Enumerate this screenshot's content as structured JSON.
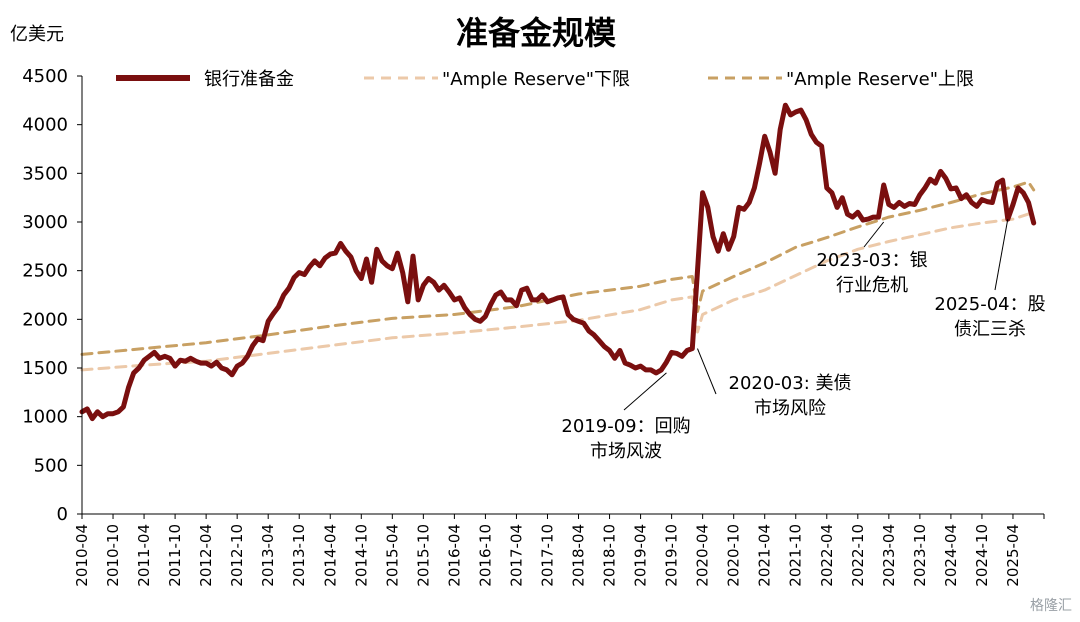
{
  "chart_data": {
    "type": "line",
    "title": "准备金规模",
    "ylabel": "亿美元",
    "ylim": [
      0,
      4500
    ],
    "yticks": [
      "0",
      "500",
      "1000",
      "1500",
      "2000",
      "2500",
      "3000",
      "3500",
      "4000",
      "4500"
    ],
    "xlim": [
      "2010-04",
      "2025-10"
    ],
    "xticks": [
      "2010-04",
      "2010-10",
      "2011-04",
      "2011-10",
      "2012-04",
      "2012-10",
      "2013-04",
      "2013-10",
      "2014-04",
      "2014-10",
      "2015-04",
      "2015-10",
      "2016-04",
      "2016-10",
      "2017-04",
      "2017-10",
      "2018-04",
      "2018-10",
      "2019-04",
      "2019-10",
      "2020-04",
      "2020-10",
      "2021-04",
      "2021-10",
      "2022-04",
      "2022-10",
      "2023-04",
      "2023-10",
      "2024-04",
      "2024-10",
      "2025-04"
    ],
    "legend_position": "top",
    "grid": false,
    "series": [
      {
        "name": "银行准备金",
        "color": "#7a0f0f",
        "style": "solid",
        "points": [
          [
            "2010-04",
            1050
          ],
          [
            "2010-05",
            1080
          ],
          [
            "2010-06",
            980
          ],
          [
            "2010-07",
            1050
          ],
          [
            "2010-08",
            1000
          ],
          [
            "2010-09",
            1030
          ],
          [
            "2010-10",
            1030
          ],
          [
            "2010-11",
            1050
          ],
          [
            "2010-12",
            1100
          ],
          [
            "2011-01",
            1300
          ],
          [
            "2011-02",
            1450
          ],
          [
            "2011-03",
            1500
          ],
          [
            "2011-04",
            1580
          ],
          [
            "2011-05",
            1620
          ],
          [
            "2011-06",
            1660
          ],
          [
            "2011-07",
            1600
          ],
          [
            "2011-08",
            1620
          ],
          [
            "2011-09",
            1600
          ],
          [
            "2011-10",
            1520
          ],
          [
            "2011-11",
            1580
          ],
          [
            "2011-12",
            1570
          ],
          [
            "2012-01",
            1600
          ],
          [
            "2012-02",
            1570
          ],
          [
            "2012-03",
            1550
          ],
          [
            "2012-04",
            1550
          ],
          [
            "2012-05",
            1520
          ],
          [
            "2012-06",
            1560
          ],
          [
            "2012-07",
            1500
          ],
          [
            "2012-08",
            1480
          ],
          [
            "2012-09",
            1430
          ],
          [
            "2012-10",
            1520
          ],
          [
            "2012-11",
            1550
          ],
          [
            "2012-12",
            1620
          ],
          [
            "2013-01",
            1730
          ],
          [
            "2013-02",
            1800
          ],
          [
            "2013-03",
            1780
          ],
          [
            "2013-04",
            1980
          ],
          [
            "2013-05",
            2060
          ],
          [
            "2013-06",
            2130
          ],
          [
            "2013-07",
            2250
          ],
          [
            "2013-08",
            2320
          ],
          [
            "2013-09",
            2430
          ],
          [
            "2013-10",
            2480
          ],
          [
            "2013-11",
            2460
          ],
          [
            "2013-12",
            2540
          ],
          [
            "2014-01",
            2600
          ],
          [
            "2014-02",
            2550
          ],
          [
            "2014-03",
            2630
          ],
          [
            "2014-04",
            2670
          ],
          [
            "2014-05",
            2680
          ],
          [
            "2014-06",
            2780
          ],
          [
            "2014-07",
            2700
          ],
          [
            "2014-08",
            2640
          ],
          [
            "2014-09",
            2500
          ],
          [
            "2014-10",
            2420
          ],
          [
            "2014-11",
            2620
          ],
          [
            "2014-12",
            2380
          ],
          [
            "2015-01",
            2720
          ],
          [
            "2015-02",
            2600
          ],
          [
            "2015-03",
            2550
          ],
          [
            "2015-04",
            2520
          ],
          [
            "2015-05",
            2680
          ],
          [
            "2015-06",
            2480
          ],
          [
            "2015-07",
            2180
          ],
          [
            "2015-08",
            2650
          ],
          [
            "2015-09",
            2200
          ],
          [
            "2015-10",
            2350
          ],
          [
            "2015-11",
            2420
          ],
          [
            "2015-12",
            2380
          ],
          [
            "2016-01",
            2300
          ],
          [
            "2016-02",
            2350
          ],
          [
            "2016-03",
            2280
          ],
          [
            "2016-04",
            2200
          ],
          [
            "2016-05",
            2220
          ],
          [
            "2016-06",
            2120
          ],
          [
            "2016-07",
            2050
          ],
          [
            "2016-08",
            2000
          ],
          [
            "2016-09",
            1980
          ],
          [
            "2016-10",
            2030
          ],
          [
            "2016-11",
            2150
          ],
          [
            "2016-12",
            2250
          ],
          [
            "2017-01",
            2280
          ],
          [
            "2017-02",
            2200
          ],
          [
            "2017-03",
            2200
          ],
          [
            "2017-04",
            2140
          ],
          [
            "2017-05",
            2300
          ],
          [
            "2017-06",
            2320
          ],
          [
            "2017-07",
            2200
          ],
          [
            "2017-08",
            2200
          ],
          [
            "2017-09",
            2250
          ],
          [
            "2017-10",
            2180
          ],
          [
            "2017-11",
            2200
          ],
          [
            "2017-12",
            2220
          ],
          [
            "2018-01",
            2230
          ],
          [
            "2018-02",
            2050
          ],
          [
            "2018-03",
            2000
          ],
          [
            "2018-04",
            1980
          ],
          [
            "2018-05",
            1960
          ],
          [
            "2018-06",
            1880
          ],
          [
            "2018-07",
            1840
          ],
          [
            "2018-08",
            1780
          ],
          [
            "2018-09",
            1720
          ],
          [
            "2018-10",
            1680
          ],
          [
            "2018-11",
            1600
          ],
          [
            "2018-12",
            1680
          ],
          [
            "2019-01",
            1550
          ],
          [
            "2019-02",
            1530
          ],
          [
            "2019-03",
            1500
          ],
          [
            "2019-04",
            1520
          ],
          [
            "2019-05",
            1480
          ],
          [
            "2019-06",
            1480
          ],
          [
            "2019-07",
            1450
          ],
          [
            "2019-08",
            1480
          ],
          [
            "2019-09",
            1560
          ],
          [
            "2019-10",
            1660
          ],
          [
            "2019-11",
            1650
          ],
          [
            "2019-12",
            1620
          ],
          [
            "2020-01",
            1680
          ],
          [
            "2020-02",
            1700
          ],
          [
            "2020-03",
            2500
          ],
          [
            "2020-04",
            3300
          ],
          [
            "2020-05",
            3150
          ],
          [
            "2020-06",
            2850
          ],
          [
            "2020-07",
            2700
          ],
          [
            "2020-08",
            2880
          ],
          [
            "2020-09",
            2720
          ],
          [
            "2020-10",
            2850
          ],
          [
            "2020-11",
            3150
          ],
          [
            "2020-12",
            3130
          ],
          [
            "2021-01",
            3200
          ],
          [
            "2021-02",
            3350
          ],
          [
            "2021-03",
            3600
          ],
          [
            "2021-04",
            3880
          ],
          [
            "2021-05",
            3720
          ],
          [
            "2021-06",
            3500
          ],
          [
            "2021-07",
            3950
          ],
          [
            "2021-08",
            4200
          ],
          [
            "2021-09",
            4100
          ],
          [
            "2021-10",
            4130
          ],
          [
            "2021-11",
            4150
          ],
          [
            "2021-12",
            4050
          ],
          [
            "2022-01",
            3900
          ],
          [
            "2022-02",
            3820
          ],
          [
            "2022-03",
            3780
          ],
          [
            "2022-04",
            3350
          ],
          [
            "2022-05",
            3300
          ],
          [
            "2022-06",
            3150
          ],
          [
            "2022-07",
            3250
          ],
          [
            "2022-08",
            3080
          ],
          [
            "2022-09",
            3050
          ],
          [
            "2022-10",
            3100
          ],
          [
            "2022-11",
            3020
          ],
          [
            "2022-12",
            3030
          ],
          [
            "2023-01",
            3050
          ],
          [
            "2023-02",
            3050
          ],
          [
            "2023-03",
            3380
          ],
          [
            "2023-04",
            3180
          ],
          [
            "2023-05",
            3150
          ],
          [
            "2023-06",
            3200
          ],
          [
            "2023-07",
            3160
          ],
          [
            "2023-08",
            3190
          ],
          [
            "2023-09",
            3180
          ],
          [
            "2023-10",
            3280
          ],
          [
            "2023-11",
            3350
          ],
          [
            "2023-12",
            3440
          ],
          [
            "2024-01",
            3400
          ],
          [
            "2024-02",
            3520
          ],
          [
            "2024-03",
            3450
          ],
          [
            "2024-04",
            3340
          ],
          [
            "2024-05",
            3350
          ],
          [
            "2024-06",
            3240
          ],
          [
            "2024-07",
            3280
          ],
          [
            "2024-08",
            3200
          ],
          [
            "2024-09",
            3160
          ],
          [
            "2024-10",
            3230
          ],
          [
            "2024-11",
            3210
          ],
          [
            "2024-12",
            3200
          ],
          [
            "2025-01",
            3400
          ],
          [
            "2025-02",
            3430
          ],
          [
            "2025-03",
            3030
          ],
          [
            "2025-04",
            3180
          ],
          [
            "2025-05",
            3350
          ],
          [
            "2025-06",
            3300
          ],
          [
            "2025-07",
            3200
          ],
          [
            "2025-08",
            2990
          ]
        ]
      },
      {
        "name": "\"Ample Reserve\"下限",
        "color": "#ecc9a9",
        "style": "dashed",
        "points": [
          [
            "2010-04",
            1480
          ],
          [
            "2011-04",
            1530
          ],
          [
            "2012-04",
            1570
          ],
          [
            "2013-04",
            1650
          ],
          [
            "2014-04",
            1730
          ],
          [
            "2015-04",
            1810
          ],
          [
            "2016-04",
            1860
          ],
          [
            "2017-04",
            1920
          ],
          [
            "2018-04",
            1990
          ],
          [
            "2019-04",
            2100
          ],
          [
            "2019-10",
            2200
          ],
          [
            "2020-02",
            2230
          ],
          [
            "2020-03",
            1870
          ],
          [
            "2020-04",
            2050
          ],
          [
            "2020-10",
            2200
          ],
          [
            "2021-04",
            2300
          ],
          [
            "2021-10",
            2450
          ],
          [
            "2022-04",
            2600
          ],
          [
            "2022-10",
            2720
          ],
          [
            "2023-04",
            2800
          ],
          [
            "2023-10",
            2870
          ],
          [
            "2024-04",
            2940
          ],
          [
            "2024-10",
            2990
          ],
          [
            "2025-04",
            3030
          ],
          [
            "2025-08",
            3100
          ]
        ]
      },
      {
        "name": "\"Ample Reserve\"上限",
        "color": "#c8a063",
        "style": "dashed",
        "points": [
          [
            "2010-04",
            1640
          ],
          [
            "2011-04",
            1700
          ],
          [
            "2012-04",
            1760
          ],
          [
            "2013-04",
            1840
          ],
          [
            "2014-04",
            1930
          ],
          [
            "2015-04",
            2010
          ],
          [
            "2016-04",
            2050
          ],
          [
            "2017-04",
            2130
          ],
          [
            "2018-04",
            2260
          ],
          [
            "2019-04",
            2340
          ],
          [
            "2019-10",
            2410
          ],
          [
            "2020-02",
            2440
          ],
          [
            "2020-03",
            2080
          ],
          [
            "2020-04",
            2290
          ],
          [
            "2020-10",
            2440
          ],
          [
            "2021-04",
            2580
          ],
          [
            "2021-10",
            2740
          ],
          [
            "2022-04",
            2840
          ],
          [
            "2022-10",
            2950
          ],
          [
            "2023-04",
            3050
          ],
          [
            "2023-10",
            3120
          ],
          [
            "2024-04",
            3200
          ],
          [
            "2024-10",
            3290
          ],
          [
            "2025-04",
            3360
          ],
          [
            "2025-07",
            3410
          ],
          [
            "2025-08",
            3330
          ]
        ]
      }
    ],
    "annotations": [
      {
        "lines": [
          "2019-09：回购",
          "市场风波"
        ],
        "point": [
          "2019-09",
          1450
        ]
      },
      {
        "lines": [
          "2020-03: 美债",
          "市场风险"
        ],
        "point": [
          "2020-03",
          1700
        ]
      },
      {
        "lines": [
          "2023-03：银",
          "行业危机"
        ],
        "point": [
          "2023-03",
          3000
        ]
      },
      {
        "lines": [
          "2025-04：股",
          "债汇三杀"
        ],
        "point": [
          "2025-03",
          3030
        ]
      }
    ]
  },
  "watermark": "格隆汇"
}
